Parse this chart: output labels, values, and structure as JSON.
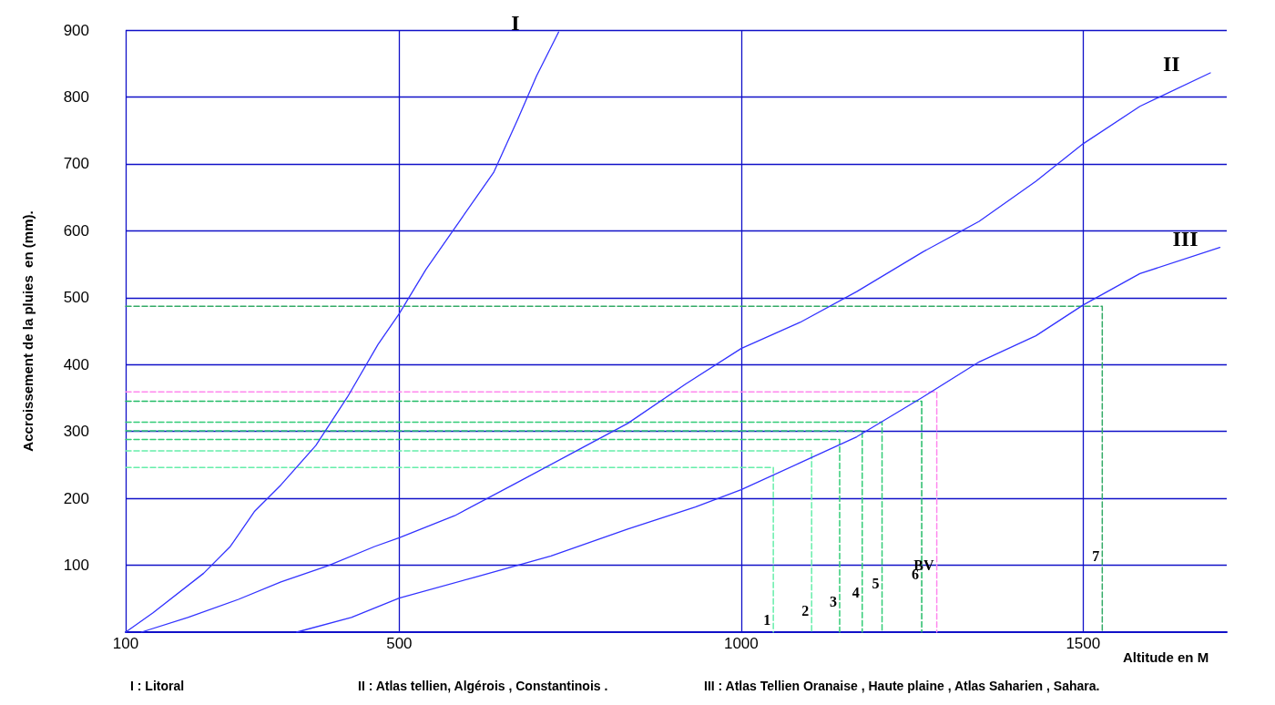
{
  "chart_data": {
    "type": "line",
    "xlabel": "Altitude en M",
    "ylabel": "Accroissement de la pluies  en (mm).",
    "xlim": [
      100,
      1710
    ],
    "xticks": [
      100,
      500,
      1000,
      1500
    ],
    "ylim": [
      0,
      900
    ],
    "yticks": [
      100,
      200,
      300,
      400,
      500,
      600,
      700,
      800,
      900
    ],
    "grid": true,
    "legend": false,
    "marker": "none",
    "series": [
      {
        "name": "I",
        "color": "#3333ff",
        "x": [
          100,
          140,
          214,
          253,
          288,
          327,
          378,
          424,
          469,
          500,
          539,
          588,
          638,
          673,
          701,
          733
        ],
        "values": [
          0,
          29,
          88,
          128,
          180,
          220,
          279,
          351,
          430,
          476,
          542,
          614,
          687,
          766,
          832,
          897
        ]
      },
      {
        "name": "II",
        "color": "#3333ff",
        "x": [
          123,
          191,
          265,
          327,
          395,
          464,
          500,
          581,
          666,
          750,
          834,
          919,
          1000,
          1086,
          1169,
          1265,
          1348,
          1431,
          1500,
          1583,
          1686
        ],
        "values": [
          0,
          22,
          49,
          75,
          99,
          128,
          141,
          174,
          220,
          266,
          312,
          371,
          424,
          463,
          509,
          568,
          614,
          674,
          730,
          786,
          836
        ]
      },
      {
        "name": "III",
        "color": "#3333ff",
        "x": [
          350,
          430,
          500,
          610,
          722,
          834,
          933,
          1000,
          1086,
          1169,
          1265,
          1348,
          1431,
          1500,
          1583,
          1700
        ],
        "values": [
          0,
          22,
          51,
          82,
          114,
          154,
          187,
          213,
          253,
          292,
          351,
          404,
          443,
          489,
          536,
          575
        ]
      },
      {
        "name": "1",
        "color": "#66eeaa",
        "line_style": "dashed",
        "x": [
          100,
          1047,
          1047
        ],
        "values": [
          246,
          246,
          0
        ]
      },
      {
        "name": "2",
        "color": "#66eeaa",
        "line_style": "dashed",
        "x": [
          100,
          1103,
          1103
        ],
        "values": [
          271,
          271,
          0
        ]
      },
      {
        "name": "3",
        "color": "#33cc77",
        "line_style": "dashed",
        "x": [
          100,
          1144,
          1144
        ],
        "values": [
          288,
          288,
          0
        ]
      },
      {
        "name": "4",
        "color": "#33cc77",
        "line_style": "dashed",
        "x": [
          100,
          1177,
          1177
        ],
        "values": [
          301,
          301,
          0
        ]
      },
      {
        "name": "5",
        "color": "#33cc77",
        "line_style": "dashed",
        "x": [
          100,
          1206,
          1206
        ],
        "values": [
          314,
          314,
          0
        ]
      },
      {
        "name": "6",
        "color": "#22bb66",
        "line_style": "dashed",
        "x": [
          100,
          1264,
          1264
        ],
        "values": [
          345,
          345,
          0
        ]
      },
      {
        "name": "BV",
        "color": "#ff88ee",
        "line_style": "dashed",
        "x": [
          100,
          1286,
          1286
        ],
        "values": [
          359,
          359,
          0
        ]
      },
      {
        "name": "7",
        "color": "#33aa66",
        "line_style": "dashed",
        "x": [
          100,
          1528,
          1528
        ],
        "values": [
          487,
          487,
          0
        ]
      }
    ],
    "annotations": [
      "I : Litoral",
      "II : Atlas tellien, Algérois , Constantinois .",
      "III : Atlas Tellien Oranaise , Haute plaine , Atlas Saharien , Sahara."
    ]
  }
}
